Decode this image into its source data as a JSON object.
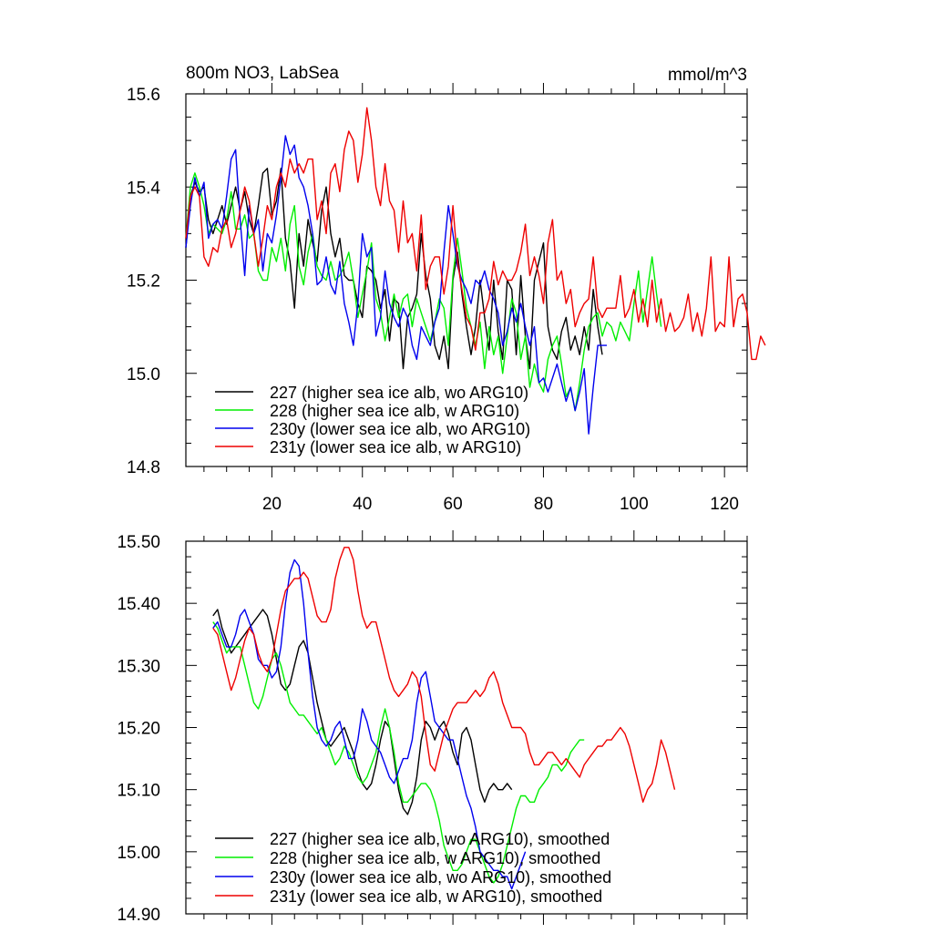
{
  "colors": {
    "227": "#000000",
    "228": "#00ee00",
    "230y": "#0000ee",
    "231y": "#ee0000"
  },
  "chart_data": [
    {
      "type": "line",
      "title": "800m NO3, LabSea",
      "units": "mmol/m^3",
      "xlim": [
        1,
        125
      ],
      "ylim": [
        14.8,
        15.6
      ],
      "xticks": [
        20,
        40,
        60,
        80,
        100,
        120
      ],
      "yticks": [
        "14.8",
        "15.0",
        "15.2",
        "15.4",
        "15.6"
      ],
      "yticks_values": [
        14.8,
        15.0,
        15.2,
        15.4,
        15.6
      ],
      "legend": [
        "227 (higher sea ice alb, wo ARG10)",
        "228 (higher sea ice alb, w ARG10)",
        "230y (lower sea ice alb, wo ARG10)",
        "231y (lower sea ice alb, w ARG10)"
      ],
      "series": [
        {
          "name": "227 (higher sea ice alb, wo ARG10)",
          "color": "#000000",
          "x_start": 1,
          "values": [
            15.27,
            15.38,
            15.41,
            15.39,
            15.4,
            15.33,
            15.3,
            15.33,
            15.36,
            15.32,
            15.36,
            15.4,
            15.35,
            15.39,
            15.33,
            15.3,
            15.36,
            15.43,
            15.44,
            15.34,
            15.37,
            15.44,
            15.29,
            15.24,
            15.14,
            15.3,
            15.23,
            15.33,
            15.28,
            15.24,
            15.35,
            15.4,
            15.3,
            15.25,
            15.29,
            15.21,
            15.2,
            15.2,
            15.15,
            15.12,
            15.23,
            15.22,
            15.2,
            15.14,
            15.18,
            15.07,
            15.16,
            15.15,
            15.01,
            15.12,
            15.14,
            15.17,
            15.3,
            15.21,
            15.16,
            15.06,
            15.03,
            15.08,
            15.01,
            15.2,
            15.26,
            15.17,
            15.1,
            15.04,
            15.1,
            15.2,
            15.12,
            15.05,
            15.2,
            15.09,
            15.03,
            15.2,
            15.18,
            15.04,
            15.21,
            15.08,
            15.01,
            15.2,
            15.24,
            15.28,
            15.1,
            15.05,
            15.03,
            15.09,
            15.12,
            15.05,
            15.08,
            15.04,
            15.1,
            15.05,
            15.18,
            15.1,
            15.04
          ]
        },
        {
          "name": "228 (higher sea ice alb, w ARG10)",
          "color": "#00ee00",
          "x_start": 1,
          "values": [
            15.29,
            15.4,
            15.43,
            15.4,
            15.36,
            15.3,
            15.32,
            15.31,
            15.3,
            15.33,
            15.39,
            15.31,
            15.31,
            15.34,
            15.29,
            15.3,
            15.22,
            15.2,
            15.2,
            15.27,
            15.24,
            15.29,
            15.22,
            15.32,
            15.36,
            15.23,
            15.19,
            15.26,
            15.3,
            15.23,
            15.21,
            15.2,
            15.24,
            15.2,
            15.21,
            15.23,
            15.26,
            15.2,
            15.12,
            15.17,
            15.22,
            15.28,
            15.16,
            15.13,
            15.07,
            15.12,
            15.17,
            15.12,
            15.16,
            15.17,
            15.1,
            15.16,
            15.13,
            15.1,
            15.07,
            15.11,
            15.16,
            15.14,
            15.06,
            15.21,
            15.29,
            15.22,
            15.14,
            15.1,
            15.06,
            15.11,
            15.01,
            15.1,
            15.04,
            15.08,
            15.0,
            15.08,
            15.16,
            15.13,
            15.03,
            15.08,
            14.97,
            15.02,
            14.98,
            14.96,
            15.03,
            15.06,
            15.08,
            15.02,
            14.95,
            14.97,
            14.92,
            14.98,
            15.05,
            15.1,
            15.12,
            15.13,
            15.08,
            15.11,
            15.1,
            15.07,
            15.11,
            15.09,
            15.07,
            15.15,
            15.22,
            15.11,
            15.18,
            15.25,
            15.17,
            15.1
          ]
        },
        {
          "name": "230y (lower sea ice alb, wo ARG10)",
          "color": "#0000ee",
          "x_start": 1,
          "values": [
            15.27,
            15.36,
            15.42,
            15.38,
            15.41,
            15.29,
            15.32,
            15.33,
            15.31,
            15.38,
            15.46,
            15.48,
            15.33,
            15.21,
            15.36,
            15.3,
            15.33,
            15.22,
            15.3,
            15.28,
            15.34,
            15.42,
            15.51,
            15.47,
            15.49,
            15.42,
            15.4,
            15.36,
            15.3,
            15.19,
            15.2,
            15.25,
            15.19,
            15.17,
            15.24,
            15.15,
            15.11,
            15.06,
            15.15,
            15.3,
            15.25,
            15.27,
            15.08,
            15.12,
            15.22,
            15.15,
            15.12,
            15.1,
            15.14,
            15.12,
            15.06,
            15.03,
            15.1,
            15.08,
            15.06,
            15.11,
            15.14,
            15.26,
            15.36,
            15.3,
            15.23,
            15.2,
            15.18,
            15.15,
            15.2,
            15.19,
            15.22,
            15.18,
            15.16,
            15.13,
            15.06,
            15.09,
            15.14,
            15.11,
            15.15,
            15.1,
            15.06,
            15.1,
            14.98,
            14.99,
            14.96,
            14.99,
            15.02,
            14.98,
            14.94,
            14.97,
            14.92,
            14.96,
            15.01,
            14.87,
            14.97,
            15.06,
            15.06,
            15.06
          ]
        },
        {
          "name": "231y (lower sea ice alb, w ARG10)",
          "color": "#ee0000",
          "x_start": 1,
          "values": [
            15.29,
            15.38,
            15.4,
            15.38,
            15.25,
            15.23,
            15.27,
            15.26,
            15.31,
            15.33,
            15.27,
            15.3,
            15.35,
            15.4,
            15.37,
            15.3,
            15.23,
            15.29,
            15.36,
            15.33,
            15.4,
            15.43,
            15.4,
            15.46,
            15.43,
            15.45,
            15.43,
            15.46,
            15.46,
            15.33,
            15.37,
            15.3,
            15.43,
            15.45,
            15.39,
            15.48,
            15.52,
            15.5,
            15.41,
            15.47,
            15.57,
            15.5,
            15.4,
            15.36,
            15.45,
            15.37,
            15.35,
            15.26,
            15.37,
            15.28,
            15.3,
            15.22,
            15.34,
            15.18,
            15.23,
            15.25,
            15.25,
            15.17,
            15.23,
            15.36,
            15.24,
            15.18,
            15.12,
            15.1,
            15.05,
            15.13,
            15.13,
            15.16,
            15.24,
            15.19,
            15.22,
            15.2,
            15.2,
            15.22,
            15.26,
            15.32,
            15.21,
            15.25,
            15.21,
            15.15,
            15.28,
            15.33,
            15.2,
            15.22,
            15.15,
            15.18,
            15.1,
            15.13,
            15.15,
            15.16,
            15.25,
            15.14,
            15.12,
            15.14,
            15.14,
            15.14,
            15.21,
            15.12,
            15.14,
            15.18,
            15.11,
            15.16,
            15.1,
            15.2,
            15.11,
            15.16,
            15.09,
            15.13,
            15.09,
            15.1,
            15.12,
            15.17,
            15.09,
            15.13,
            15.08,
            15.14,
            15.25,
            15.09,
            15.11,
            15.1,
            15.25,
            15.1,
            15.16,
            15.17,
            15.13,
            15.03,
            15.03,
            15.08,
            15.06
          ]
        }
      ]
    },
    {
      "type": "line",
      "title": "",
      "xlim": [
        1,
        125
      ],
      "ylim": [
        14.9,
        15.5
      ],
      "xticks": [],
      "yticks": [
        "14.90",
        "15.00",
        "15.10",
        "15.20",
        "15.30",
        "15.40",
        "15.50"
      ],
      "yticks_values": [
        14.9,
        15.0,
        15.1,
        15.2,
        15.3,
        15.4,
        15.5
      ],
      "legend": [
        "227 (higher sea ice alb, wo ARG10), smoothed",
        "228 (higher sea ice alb, w ARG10), smoothed",
        "230y (lower sea ice alb, wo ARG10), smoothed",
        "231y (lower sea ice alb, w ARG10), smoothed"
      ],
      "series": [
        {
          "name": "227 (higher sea ice alb, wo ARG10), smoothed",
          "color": "#000000",
          "x_start": 7,
          "values": [
            15.38,
            15.39,
            15.36,
            15.34,
            15.32,
            15.33,
            15.34,
            15.35,
            15.36,
            15.37,
            15.38,
            15.39,
            15.38,
            15.35,
            15.31,
            15.27,
            15.26,
            15.27,
            15.3,
            15.33,
            15.34,
            15.32,
            15.28,
            15.24,
            15.21,
            15.18,
            15.17,
            15.18,
            15.19,
            15.2,
            15.18,
            15.16,
            15.13,
            15.11,
            15.1,
            15.11,
            15.14,
            15.18,
            15.21,
            15.2,
            15.15,
            15.1,
            15.07,
            15.06,
            15.08,
            15.12,
            15.18,
            15.21,
            15.2,
            15.18,
            15.2,
            15.21,
            15.19,
            15.16,
            15.14,
            15.19,
            15.2,
            15.18,
            15.14,
            15.1,
            15.08,
            15.1,
            15.11,
            15.1,
            15.1,
            15.11,
            15.1
          ]
        },
        {
          "name": "228 (higher sea ice alb, w ARG10), smoothed",
          "color": "#00ee00",
          "x_start": 7,
          "values": [
            15.37,
            15.36,
            15.34,
            15.32,
            15.33,
            15.33,
            15.33,
            15.3,
            15.27,
            15.24,
            15.23,
            15.25,
            15.28,
            15.31,
            15.32,
            15.3,
            15.27,
            15.24,
            15.23,
            15.22,
            15.22,
            15.21,
            15.2,
            15.19,
            15.2,
            15.18,
            15.16,
            15.14,
            15.15,
            15.17,
            15.16,
            15.14,
            15.12,
            15.11,
            15.12,
            15.14,
            15.16,
            15.2,
            15.23,
            15.2,
            15.16,
            15.11,
            15.08,
            15.08,
            15.09,
            15.1,
            15.11,
            15.11,
            15.1,
            15.08,
            15.05,
            15.01,
            14.99,
            14.97,
            14.97,
            14.98,
            15.0,
            15.02,
            15.02,
            15.0,
            14.98,
            14.96,
            14.95,
            14.96,
            14.98,
            15.01,
            15.04,
            15.07,
            15.09,
            15.09,
            15.08,
            15.08,
            15.1,
            15.11,
            15.12,
            15.14,
            15.14,
            15.13,
            15.14,
            15.16,
            15.17,
            15.18,
            15.18
          ]
        },
        {
          "name": "230y (lower sea ice alb, wo ARG10), smoothed",
          "color": "#0000ee",
          "x_start": 7,
          "values": [
            15.36,
            15.37,
            15.35,
            15.33,
            15.33,
            15.35,
            15.38,
            15.39,
            15.37,
            15.35,
            15.31,
            15.3,
            15.3,
            15.28,
            15.29,
            15.33,
            15.4,
            15.45,
            15.47,
            15.46,
            15.4,
            15.32,
            15.25,
            15.2,
            15.18,
            15.17,
            15.18,
            15.2,
            15.21,
            15.18,
            15.15,
            15.15,
            15.18,
            15.23,
            15.21,
            15.18,
            15.17,
            15.16,
            15.14,
            15.12,
            15.11,
            15.13,
            15.15,
            15.15,
            15.18,
            15.24,
            15.28,
            15.29,
            15.25,
            15.21,
            15.2,
            15.19,
            15.18,
            15.18,
            15.15,
            15.12,
            15.09,
            15.07,
            15.04,
            15.0,
            14.99,
            14.98,
            14.97,
            14.97,
            14.96,
            14.96,
            14.94,
            14.96,
            14.98,
            15.0
          ]
        },
        {
          "name": "231y (lower sea ice alb, w ARG10), smoothed",
          "color": "#ee0000",
          "x_start": 7,
          "values": [
            15.36,
            15.35,
            15.32,
            15.29,
            15.26,
            15.28,
            15.31,
            15.34,
            15.36,
            15.35,
            15.32,
            15.3,
            15.29,
            15.31,
            15.35,
            15.39,
            15.42,
            15.43,
            15.44,
            15.44,
            15.45,
            15.44,
            15.41,
            15.38,
            15.37,
            15.37,
            15.39,
            15.44,
            15.47,
            15.49,
            15.49,
            15.47,
            15.42,
            15.38,
            15.36,
            15.37,
            15.37,
            15.34,
            15.31,
            15.28,
            15.26,
            15.25,
            15.26,
            15.27,
            15.29,
            15.28,
            15.25,
            15.19,
            15.14,
            15.13,
            15.16,
            15.19,
            15.21,
            15.23,
            15.24,
            15.24,
            15.24,
            15.25,
            15.26,
            15.25,
            15.26,
            15.28,
            15.29,
            15.27,
            15.24,
            15.22,
            15.2,
            15.2,
            15.2,
            15.19,
            15.16,
            15.14,
            15.14,
            15.15,
            15.16,
            15.16,
            15.15,
            15.14,
            15.15,
            15.14,
            15.13,
            15.12,
            15.14,
            15.15,
            15.16,
            15.17,
            15.17,
            15.18,
            15.18,
            15.19,
            15.2,
            15.19,
            15.17,
            15.14,
            15.11,
            15.08,
            15.1,
            15.11,
            15.14,
            15.18,
            15.16,
            15.13,
            15.1
          ]
        }
      ]
    }
  ]
}
